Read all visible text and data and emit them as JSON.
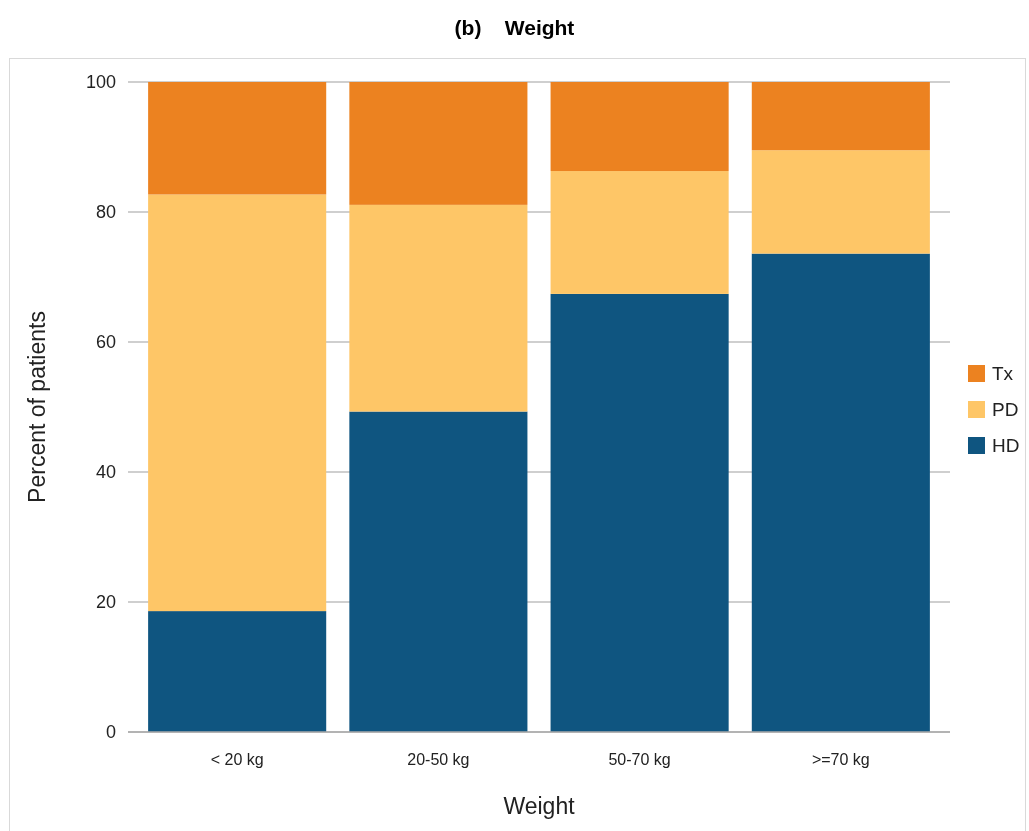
{
  "chart_data": {
    "type": "bar",
    "title": "(b)    Weight",
    "xlabel": "Weight",
    "ylabel": "Percent of patients",
    "categories": [
      "< 20 kg",
      "20-50 kg",
      "50-70 kg",
      ">=70 kg"
    ],
    "series": [
      {
        "name": "HD",
        "color": "#0f5580",
        "values": [
          18.6,
          49.3,
          67.4,
          73.6
        ]
      },
      {
        "name": "PD",
        "color": "#fec667",
        "values": [
          64.1,
          31.8,
          18.9,
          15.9
        ]
      },
      {
        "name": "Tx",
        "color": "#ec8220",
        "values": [
          17.3,
          18.9,
          13.7,
          10.5
        ]
      }
    ],
    "stacked": true,
    "ylim": [
      0,
      100
    ],
    "yticks": [
      0,
      20,
      40,
      60,
      80,
      100
    ],
    "grid": "y",
    "legend": "right"
  }
}
